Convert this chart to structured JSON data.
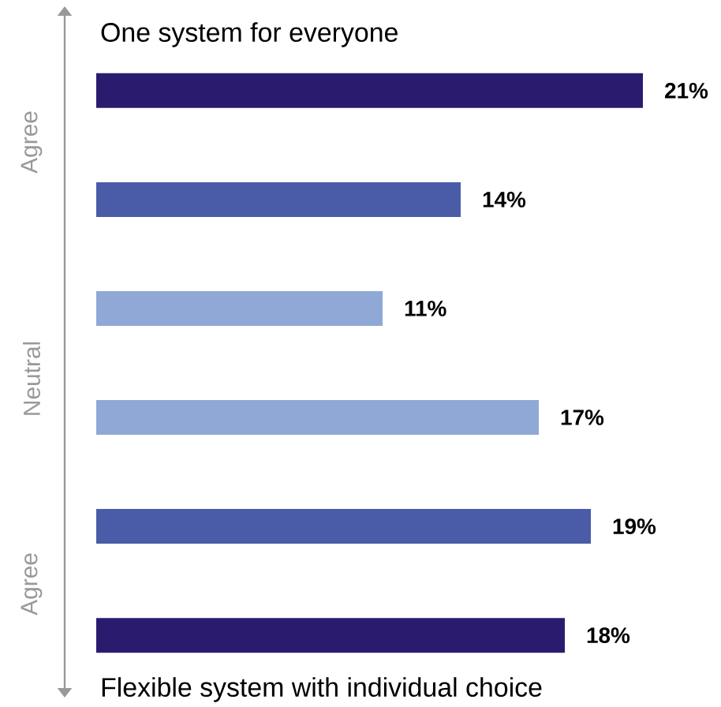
{
  "chart_data": {
    "type": "bar",
    "orientation": "horizontal",
    "title": "One system for everyone",
    "annotations": [
      "Flexible system with individual choice",
      "Agree",
      "Neutral",
      "Agree"
    ],
    "categories": [
      null,
      null,
      null,
      null,
      null,
      null
    ],
    "values": [
      21,
      14,
      11,
      17,
      19,
      18
    ],
    "colors": [
      "#2b1b6e",
      "#4a5ca8",
      "#8fa8d6",
      "#8fa8d6",
      "#4a5ca8",
      "#2b1b6e"
    ],
    "value_labels": [
      "21%",
      "14%",
      "11%",
      "17%",
      "19%",
      "18%"
    ],
    "tick_labels": false
  }
}
